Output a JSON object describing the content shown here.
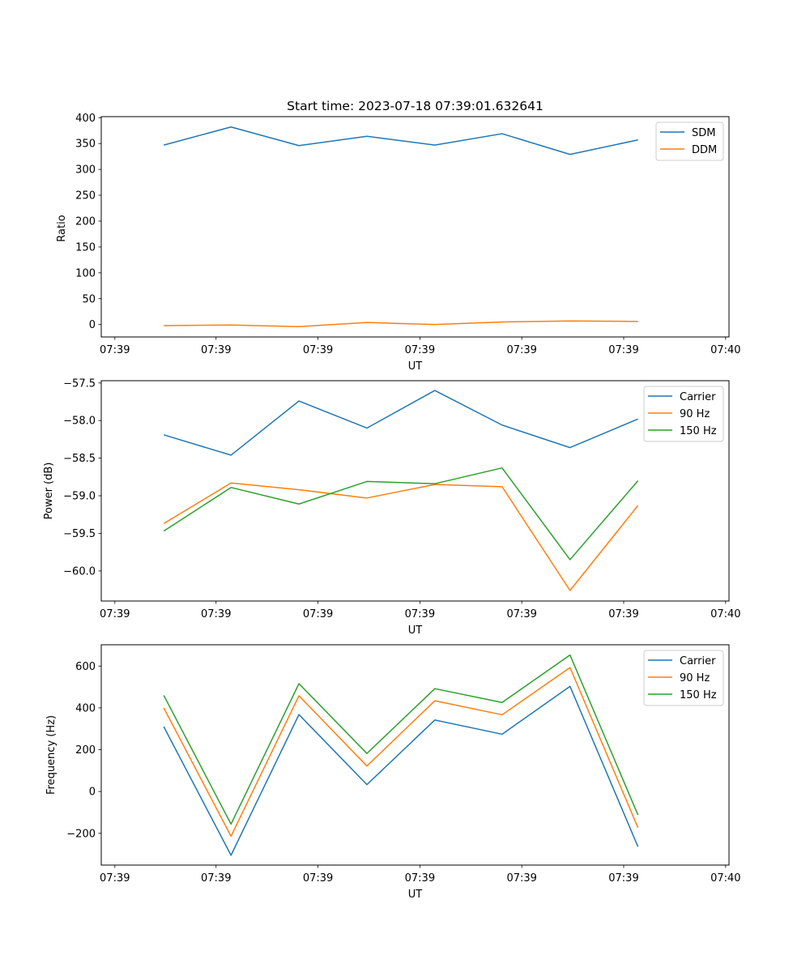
{
  "chart_data": [
    {
      "type": "line",
      "id": "ratio",
      "title": "Start time: 2023-07-18 07:39:01.632641",
      "xlabel": "UT",
      "ylabel": "Ratio",
      "xlim": [
        -0.55,
        8.69
      ],
      "ylim": [
        -24,
        402
      ],
      "yticks": [
        0,
        50,
        100,
        150,
        200,
        250,
        300,
        350,
        400
      ],
      "ytick_labels": [
        "0",
        "50",
        "100",
        "150",
        "200",
        "250",
        "300",
        "350",
        "400"
      ],
      "xticks": [
        -0.35,
        1.14,
        2.64,
        4.14,
        5.64,
        7.14,
        8.64
      ],
      "xtick_labels": [
        "07:39",
        "07:39",
        "07:39",
        "07:39",
        "07:39",
        "07:39",
        "07:40"
      ],
      "x": [
        0.37,
        1.36,
        2.36,
        3.36,
        4.36,
        5.35,
        6.35,
        7.35
      ],
      "series": [
        {
          "name": "SDM",
          "color": "#1f77b4",
          "values": [
            347,
            382,
            346,
            364,
            347,
            369,
            329,
            357
          ]
        },
        {
          "name": "DDM",
          "color": "#ff7f0e",
          "values": [
            -2,
            -1,
            -4,
            4,
            0,
            5,
            7,
            6
          ]
        }
      ],
      "legend": "upper-right"
    },
    {
      "type": "line",
      "id": "power",
      "title": "",
      "xlabel": "UT",
      "ylabel": "Power (dB)",
      "xlim": [
        -0.55,
        8.69
      ],
      "ylim": [
        -60.4,
        -57.47
      ],
      "yticks": [
        -60.0,
        -59.5,
        -59.0,
        -58.5,
        -58.0,
        -57.5
      ],
      "ytick_labels": [
        "−60.0",
        "−59.5",
        "−59.0",
        "−58.5",
        "−58.0",
        "−57.5"
      ],
      "xticks": [
        -0.35,
        1.14,
        2.64,
        4.14,
        5.64,
        7.14,
        8.64
      ],
      "xtick_labels": [
        "07:39",
        "07:39",
        "07:39",
        "07:39",
        "07:39",
        "07:39",
        "07:40"
      ],
      "x": [
        0.37,
        1.36,
        2.36,
        3.36,
        4.36,
        5.35,
        6.35,
        7.35
      ],
      "series": [
        {
          "name": "Carrier",
          "color": "#1f77b4",
          "values": [
            -58.19,
            -58.46,
            -57.74,
            -58.1,
            -57.6,
            -58.06,
            -58.36,
            -57.98
          ]
        },
        {
          "name": "90 Hz",
          "color": "#ff7f0e",
          "values": [
            -59.37,
            -58.83,
            -58.92,
            -59.03,
            -58.85,
            -58.88,
            -60.26,
            -59.13
          ]
        },
        {
          "name": "150 Hz",
          "color": "#2ca02c",
          "values": [
            -59.47,
            -58.89,
            -59.11,
            -58.81,
            -58.84,
            -58.63,
            -59.85,
            -58.8
          ]
        }
      ],
      "legend": "upper-right"
    },
    {
      "type": "line",
      "id": "frequency",
      "title": "",
      "xlabel": "UT",
      "ylabel": "Frequency (Hz)",
      "xlim": [
        -0.55,
        8.69
      ],
      "ylim": [
        -352,
        702
      ],
      "yticks": [
        -200,
        0,
        200,
        400,
        600
      ],
      "ytick_labels": [
        "−200",
        "0",
        "200",
        "400",
        "600"
      ],
      "xticks": [
        -0.35,
        1.14,
        2.64,
        4.14,
        5.64,
        7.14,
        8.64
      ],
      "xtick_labels": [
        "07:39",
        "07:39",
        "07:39",
        "07:39",
        "07:39",
        "07:39",
        "07:40"
      ],
      "x": [
        0.37,
        1.36,
        2.36,
        3.36,
        4.36,
        5.35,
        6.35,
        7.35
      ],
      "series": [
        {
          "name": "Carrier",
          "color": "#1f77b4",
          "values": [
            310,
            -305,
            368,
            33,
            342,
            274,
            503,
            -264
          ]
        },
        {
          "name": "90 Hz",
          "color": "#ff7f0e",
          "values": [
            400,
            -214,
            458,
            122,
            434,
            367,
            593,
            -173
          ]
        },
        {
          "name": "150 Hz",
          "color": "#2ca02c",
          "values": [
            460,
            -156,
            516,
            182,
            492,
            426,
            653,
            -112
          ]
        }
      ],
      "legend": "upper-right"
    }
  ]
}
